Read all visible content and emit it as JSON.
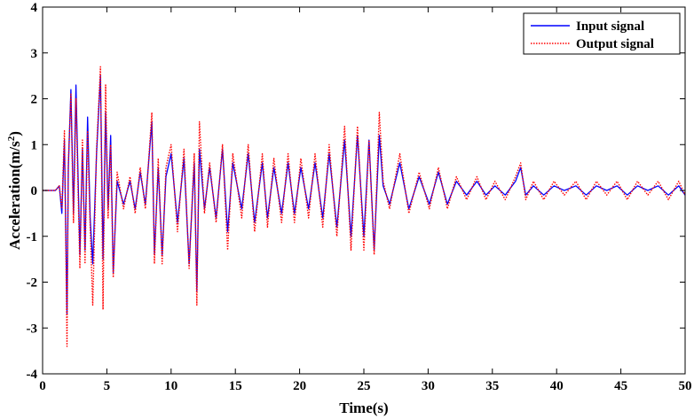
{
  "chart_data": {
    "type": "line",
    "xlabel": "Time(s)",
    "ylabel": "Acceleration(m/s",
    "ylabel_sup": "2",
    "ylabel_close": ")",
    "xlim": [
      0,
      50
    ],
    "ylim": [
      -4,
      4
    ],
    "xticks": [
      "0",
      "5",
      "10",
      "15",
      "20",
      "25",
      "30",
      "35",
      "40",
      "45",
      "50"
    ],
    "yticks": [
      "4",
      "3",
      "2",
      "1",
      "0",
      "-1",
      "-2",
      "-3",
      "-4"
    ],
    "legend": {
      "position": "top-right"
    },
    "series": [
      {
        "name": "Input signal",
        "color": "#0000ff",
        "style": "solid",
        "x": [
          0,
          1.0,
          1.3,
          1.5,
          1.7,
          1.9,
          2.0,
          2.2,
          2.4,
          2.6,
          2.9,
          3.1,
          3.3,
          3.5,
          3.7,
          3.9,
          4.2,
          4.5,
          4.7,
          4.9,
          5.1,
          5.3,
          5.5,
          5.8,
          6.3,
          6.8,
          7.2,
          7.6,
          8.0,
          8.5,
          8.7,
          9.0,
          9.3,
          9.6,
          10.0,
          10.5,
          11.0,
          11.4,
          11.8,
          12.0,
          12.2,
          12.6,
          13.0,
          13.5,
          14.0,
          14.4,
          14.8,
          15.5,
          16.0,
          16.5,
          17.1,
          17.5,
          18.0,
          18.6,
          19.1,
          19.6,
          20.1,
          20.7,
          21.2,
          21.8,
          22.3,
          22.9,
          23.5,
          24.0,
          24.5,
          25.0,
          25.4,
          25.8,
          26.2,
          26.5,
          27.0,
          27.8,
          28.5,
          29.3,
          30.1,
          30.8,
          31.5,
          32.2,
          33.0,
          33.8,
          34.5,
          35.2,
          36.0,
          36.8,
          37.2,
          37.6,
          38.2,
          39.0,
          39.8,
          40.6,
          41.5,
          42.3,
          43.1,
          43.9,
          44.7,
          45.5,
          46.3,
          47.1,
          47.9,
          48.7,
          49.5,
          50.0
        ],
        "y": [
          0,
          0,
          0.1,
          -0.5,
          1.1,
          -2.7,
          0.5,
          2.2,
          -0.5,
          2.3,
          -1.4,
          0.9,
          -1.3,
          1.6,
          -0.6,
          -1.6,
          0.8,
          2.5,
          -1.5,
          1.7,
          -0.4,
          1.2,
          -1.8,
          0.2,
          -0.3,
          0.2,
          -0.4,
          0.4,
          -0.3,
          1.5,
          -1.4,
          0.5,
          -1.4,
          0.3,
          0.8,
          -0.7,
          0.7,
          -1.6,
          0.6,
          -2.2,
          0.9,
          -0.4,
          0.5,
          -0.6,
          0.9,
          -0.9,
          0.6,
          -0.4,
          0.8,
          -0.7,
          0.6,
          -0.6,
          0.5,
          -0.5,
          0.6,
          -0.5,
          0.5,
          -0.4,
          0.6,
          -0.6,
          0.8,
          -0.8,
          1.1,
          -1.0,
          1.2,
          -1.0,
          1.1,
          -1.3,
          1.2,
          0.1,
          -0.3,
          0.6,
          -0.4,
          0.3,
          -0.3,
          0.4,
          -0.3,
          0.2,
          -0.1,
          0.2,
          -0.1,
          0.1,
          -0.1,
          0.2,
          0.5,
          -0.1,
          0.1,
          -0.1,
          0.1,
          0.0,
          0.1,
          -0.1,
          0.1,
          0.0,
          0.1,
          -0.1,
          0.1,
          0.0,
          0.1,
          -0.1,
          0.1,
          -0.1
        ]
      },
      {
        "name": "Output signal",
        "color": "#ff0000",
        "style": "dotted",
        "x": [
          0,
          1.0,
          1.3,
          1.5,
          1.7,
          1.9,
          2.0,
          2.2,
          2.4,
          2.6,
          2.9,
          3.1,
          3.3,
          3.5,
          3.7,
          3.9,
          4.2,
          4.5,
          4.7,
          4.9,
          5.1,
          5.3,
          5.5,
          5.8,
          6.3,
          6.8,
          7.2,
          7.6,
          8.0,
          8.5,
          8.7,
          9.0,
          9.3,
          9.6,
          10.0,
          10.5,
          11.0,
          11.4,
          11.8,
          12.0,
          12.2,
          12.6,
          13.0,
          13.5,
          14.0,
          14.4,
          14.8,
          15.5,
          16.0,
          16.5,
          17.1,
          17.5,
          18.0,
          18.6,
          19.1,
          19.6,
          20.1,
          20.7,
          21.2,
          21.8,
          22.3,
          22.9,
          23.5,
          24.0,
          24.5,
          25.0,
          25.4,
          25.8,
          26.2,
          26.5,
          27.0,
          27.8,
          28.5,
          29.3,
          30.1,
          30.8,
          31.5,
          32.2,
          33.0,
          33.8,
          34.5,
          35.2,
          36.0,
          36.8,
          37.2,
          37.6,
          38.2,
          39.0,
          39.8,
          40.6,
          41.5,
          42.3,
          43.1,
          43.9,
          44.7,
          45.5,
          46.3,
          47.1,
          47.9,
          48.7,
          49.5,
          50.0
        ],
        "y": [
          0,
          0,
          0.1,
          -0.4,
          1.3,
          -3.4,
          0.6,
          2.1,
          -0.7,
          2.0,
          -1.7,
          1.1,
          -1.6,
          1.3,
          -0.8,
          -2.5,
          0.9,
          2.7,
          -2.6,
          2.3,
          -0.6,
          1.0,
          -1.9,
          0.4,
          -0.4,
          0.3,
          -0.5,
          0.5,
          -0.4,
          1.7,
          -1.6,
          0.7,
          -1.6,
          0.5,
          1.0,
          -0.9,
          0.9,
          -1.7,
          0.8,
          -2.5,
          1.5,
          -0.5,
          0.6,
          -0.7,
          1.0,
          -1.3,
          0.8,
          -0.6,
          1.0,
          -0.9,
          0.8,
          -0.8,
          0.7,
          -0.7,
          0.8,
          -0.7,
          0.7,
          -0.6,
          0.8,
          -0.8,
          1.0,
          -1.0,
          1.4,
          -1.3,
          1.4,
          -1.3,
          1.1,
          -1.4,
          1.7,
          0.2,
          -0.4,
          0.8,
          -0.5,
          0.4,
          -0.4,
          0.5,
          -0.4,
          0.3,
          -0.2,
          0.3,
          -0.2,
          0.2,
          -0.2,
          0.3,
          0.6,
          -0.2,
          0.2,
          -0.2,
          0.2,
          -0.1,
          0.2,
          -0.2,
          0.2,
          -0.1,
          0.2,
          -0.2,
          0.2,
          -0.1,
          0.2,
          -0.2,
          0.2,
          -0.1
        ]
      }
    ]
  }
}
